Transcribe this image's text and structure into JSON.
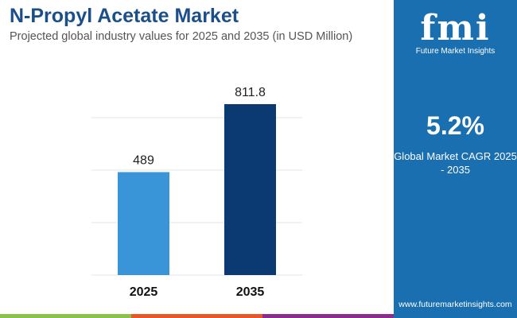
{
  "chart_data": {
    "type": "bar",
    "title": "N-Propyl Acetate Market",
    "subtitle": "Projected global industry values for 2025 and 2035 (in USD Million)",
    "categories": [
      "2025",
      "2035"
    ],
    "values": [
      489,
      811.8
    ],
    "data_labels": [
      "489",
      "811.8"
    ],
    "colors": [
      "#3a95d8",
      "#0b3a72"
    ],
    "grid": true,
    "ylim": [
      0,
      1000
    ]
  },
  "brand": {
    "logo": "fmi",
    "name": "Future Market Insights",
    "url": "www.futuremarketinsights.com",
    "color": "#1a6fb0"
  },
  "cagr": {
    "value": "5.2%",
    "label": "Global Market CAGR 2025 - 2035"
  },
  "footer_colors": [
    "#8bc34a",
    "#e8572a",
    "#8a2d8c"
  ]
}
